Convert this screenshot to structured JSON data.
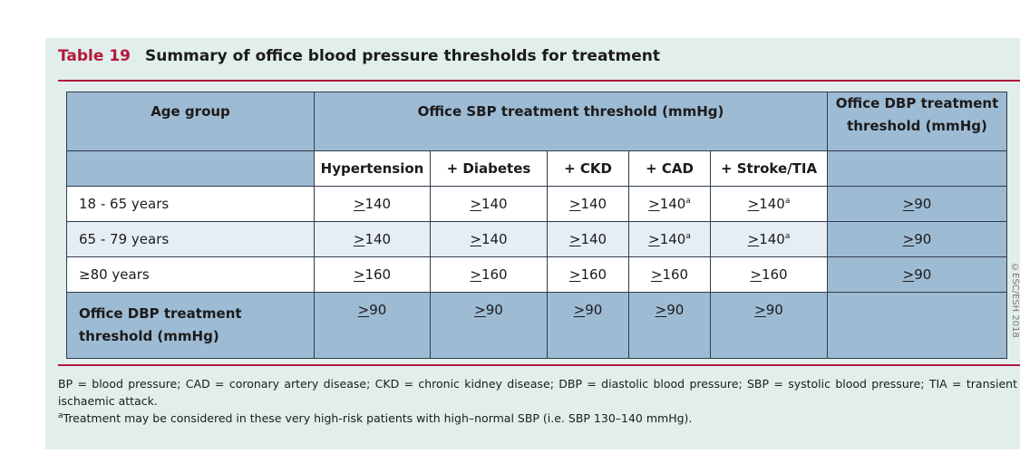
{
  "title": {
    "number": "Table 19",
    "text": "Summary of office blood pressure thresholds for treatment"
  },
  "table": {
    "header": {
      "age_group": "Age group",
      "sbp_group": "Office SBP treatment threshold (mmHg)",
      "dbp_group": "Office DBP treatment threshold (mmHg)",
      "sub_columns": [
        "Hypertension",
        "+ Diabetes",
        "+ CKD",
        "+ CAD",
        "+ Stroke/TIA"
      ]
    },
    "rows": [
      {
        "age": "18 - 65 years",
        "values": [
          "140",
          "140",
          "140",
          "140",
          "140"
        ],
        "sup": [
          "",
          "",
          "",
          "a",
          "a"
        ],
        "dbp": "90"
      },
      {
        "age": "65 - 79 years",
        "values": [
          "140",
          "140",
          "140",
          "140",
          "140"
        ],
        "sup": [
          "",
          "",
          "",
          "a",
          "a"
        ],
        "dbp": "90"
      },
      {
        "age_prefix": "≥",
        "age": "80 years",
        "values": [
          "160",
          "160",
          "160",
          "160",
          "160"
        ],
        "sup": [
          "",
          "",
          "",
          "",
          ""
        ],
        "dbp": "90"
      }
    ],
    "ge_symbol": ">",
    "last_row": {
      "label": "Office DBP treatment threshold (mmHg)",
      "values": [
        "90",
        "90",
        "90",
        "90",
        "90"
      ]
    }
  },
  "footnotes": {
    "abbreviations": "BP = blood pressure; CAD = coronary artery disease; CKD = chronic kidney disease; DBP = diastolic blood pressure; SBP = systolic blood pressure; TIA = transient ischaemic attack.",
    "note_marker": "a",
    "note": "Treatment may be considered in these very high-risk patients with high–normal SBP (i.e. SBP 130–140 mmHg)."
  },
  "side_text": "©ESC/ESH 2018"
}
